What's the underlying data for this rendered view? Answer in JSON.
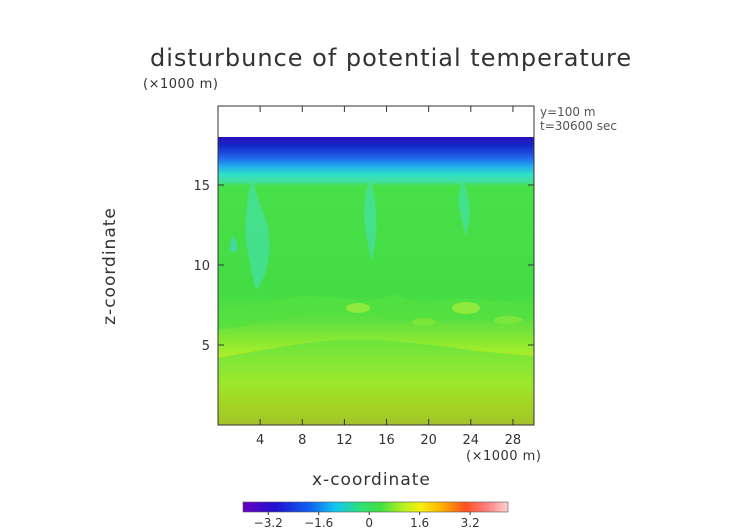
{
  "chart_data": {
    "type": "heatmap",
    "title": "disturbunce of potential temperature",
    "xlabel": "x-coordinate",
    "ylabel": "z-coordinate",
    "x_unit": "(×1000 m)",
    "y_unit": "(×1000 m)",
    "annotations": [
      "y=100 m",
      "t=30600 sec"
    ],
    "xlim": [
      0,
      30
    ],
    "ylim": [
      0,
      18
    ],
    "x_ticks": [
      4,
      8,
      12,
      16,
      20,
      24,
      28
    ],
    "y_ticks": [
      5,
      10,
      15
    ],
    "colorbar": {
      "range": [
        -4.0,
        4.4
      ],
      "ticks": [
        -3.2,
        -1.6,
        0,
        1.6,
        3.2
      ],
      "tick_labels": [
        "−3.2",
        "−1.6",
        "0",
        "1.6",
        "3.2"
      ]
    },
    "levels_by_height": [
      {
        "z": 18.0,
        "value": -3.5
      },
      {
        "z": 17.2,
        "value": -2.6
      },
      {
        "z": 16.3,
        "value": -1.8
      },
      {
        "z": 15.4,
        "value": -1.0
      },
      {
        "z": 15.0,
        "value": -0.2
      },
      {
        "z": 12.0,
        "value": 0.0
      },
      {
        "z": 6.0,
        "value": 0.3
      },
      {
        "z": 4.0,
        "value": 0.6
      },
      {
        "z": 3.0,
        "value": 1.0
      },
      {
        "z": 2.0,
        "value": 1.6
      },
      {
        "z": 1.0,
        "value": 2.4
      },
      {
        "z": 0.0,
        "value": 2.8
      }
    ]
  }
}
